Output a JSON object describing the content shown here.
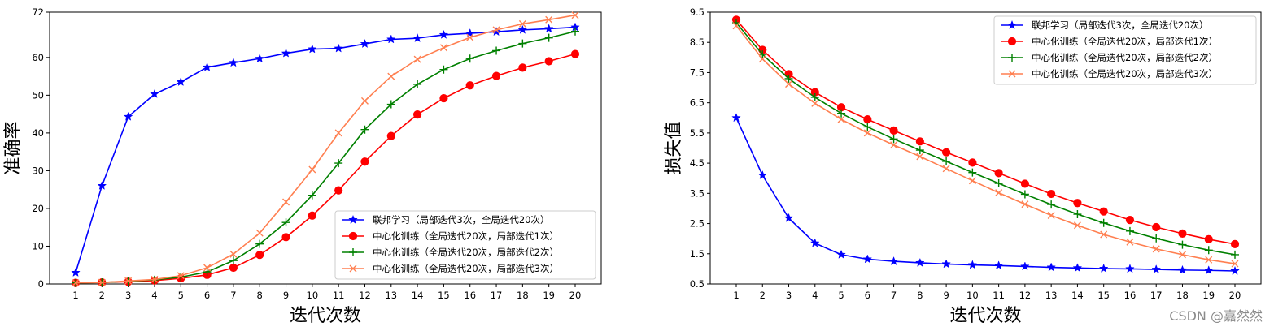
{
  "watermark": "CSDN @嘉然然",
  "chart_data": [
    {
      "type": "line",
      "title": "",
      "xlabel": "迭代次数",
      "ylabel": "准确率",
      "x": [
        1,
        2,
        3,
        4,
        5,
        6,
        7,
        8,
        9,
        10,
        11,
        12,
        13,
        14,
        15,
        16,
        17,
        18,
        19,
        20
      ],
      "xticks": [
        "1",
        "2",
        "3",
        "4",
        "5",
        "6",
        "7",
        "8",
        "9",
        "10",
        "11",
        "12",
        "13",
        "14",
        "15",
        "16",
        "17",
        "18",
        "19",
        "20"
      ],
      "ylim": [
        0,
        72
      ],
      "yticks": [
        0,
        10,
        20,
        30,
        40,
        50,
        60,
        72
      ],
      "ytick_labels": [
        "0",
        "10",
        "20",
        "30",
        "40",
        "50",
        "60",
        "72"
      ],
      "legend_position": "lower-right",
      "series": [
        {
          "name": "联邦学习（局部迭代3次，全局迭代20次）",
          "color": "#0000ff",
          "marker": "star",
          "values": [
            3,
            26,
            44.3,
            50.3,
            53.5,
            57.4,
            58.6,
            59.7,
            61.1,
            62.2,
            62.4,
            63.6,
            64.8,
            65.1,
            66.0,
            66.4,
            66.8,
            67.3,
            67.6,
            68.0
          ]
        },
        {
          "name": "中心化训练（全局迭代20次，局部迭代1次）",
          "color": "#ff0000",
          "marker": "circle",
          "values": [
            0.3,
            0.4,
            0.6,
            0.9,
            1.5,
            2.4,
            4.3,
            7.7,
            12.4,
            18.1,
            24.8,
            32.4,
            39.2,
            44.9,
            49.2,
            52.6,
            55.1,
            57.3,
            59.0,
            60.9
          ]
        },
        {
          "name": "中心化训练（全局迭代20次，局部迭代2次）",
          "color": "#008000",
          "marker": "plus",
          "values": [
            0.3,
            0.4,
            0.7,
            1.1,
            1.8,
            3.2,
            6.2,
            10.6,
            16.3,
            23.5,
            32.0,
            40.9,
            47.6,
            52.9,
            56.8,
            59.7,
            61.8,
            63.7,
            65.2,
            66.9
          ]
        },
        {
          "name": "中心化训练（全局迭代20次，局部迭代3次）",
          "color": "#ff7f50",
          "marker": "x",
          "values": [
            0.3,
            0.4,
            0.8,
            1.2,
            2.2,
            4.3,
            7.9,
            13.5,
            21.7,
            30.3,
            40.0,
            48.5,
            55.0,
            59.5,
            62.6,
            65.3,
            67.3,
            68.9,
            70.0,
            71.2
          ]
        }
      ]
    },
    {
      "type": "line",
      "title": "",
      "xlabel": "迭代次数",
      "ylabel": "损失值",
      "x": [
        1,
        2,
        3,
        4,
        5,
        6,
        7,
        8,
        9,
        10,
        11,
        12,
        13,
        14,
        15,
        16,
        17,
        18,
        19,
        20
      ],
      "xticks": [
        "1",
        "2",
        "3",
        "4",
        "5",
        "6",
        "7",
        "8",
        "9",
        "10",
        "11",
        "12",
        "13",
        "14",
        "15",
        "16",
        "17",
        "18",
        "19",
        "20"
      ],
      "ylim": [
        0.5,
        9.5
      ],
      "yticks": [
        0.5,
        1.5,
        2.5,
        3.5,
        4.5,
        5.5,
        6.5,
        7.5,
        8.5,
        9.5
      ],
      "ytick_labels": [
        "0.5",
        "1.5",
        "2.5",
        "3.5",
        "4.5",
        "5.5",
        "6.5",
        "7.5",
        "8.5",
        "9.5"
      ],
      "legend_position": "top-right",
      "series": [
        {
          "name": "联邦学习（局部迭代3次，全局迭代20次）",
          "color": "#0000ff",
          "marker": "star",
          "values": [
            6.0,
            4.1,
            2.68,
            1.85,
            1.47,
            1.32,
            1.25,
            1.2,
            1.16,
            1.13,
            1.11,
            1.08,
            1.05,
            1.03,
            1.01,
            1.0,
            0.98,
            0.96,
            0.95,
            0.93
          ]
        },
        {
          "name": "中心化训练（全局迭代20次，局部迭代1次）",
          "color": "#ff0000",
          "marker": "circle",
          "values": [
            9.25,
            8.25,
            7.45,
            6.85,
            6.35,
            5.95,
            5.58,
            5.22,
            4.86,
            4.52,
            4.17,
            3.82,
            3.48,
            3.18,
            2.9,
            2.62,
            2.38,
            2.17,
            1.98,
            1.82
          ]
        },
        {
          "name": "中心化训练（全局迭代20次，局部迭代2次）",
          "color": "#008000",
          "marker": "plus",
          "values": [
            9.15,
            8.1,
            7.3,
            6.68,
            6.15,
            5.7,
            5.3,
            4.93,
            4.56,
            4.19,
            3.83,
            3.47,
            3.13,
            2.81,
            2.52,
            2.25,
            2.01,
            1.8,
            1.62,
            1.47
          ]
        },
        {
          "name": "中心化训练（全局迭代20次，局部迭代3次）",
          "color": "#ff7f50",
          "marker": "x",
          "values": [
            9.05,
            7.95,
            7.12,
            6.48,
            5.95,
            5.5,
            5.1,
            4.72,
            4.32,
            3.92,
            3.52,
            3.14,
            2.77,
            2.44,
            2.14,
            1.89,
            1.66,
            1.47,
            1.3,
            1.17
          ]
        }
      ]
    }
  ]
}
